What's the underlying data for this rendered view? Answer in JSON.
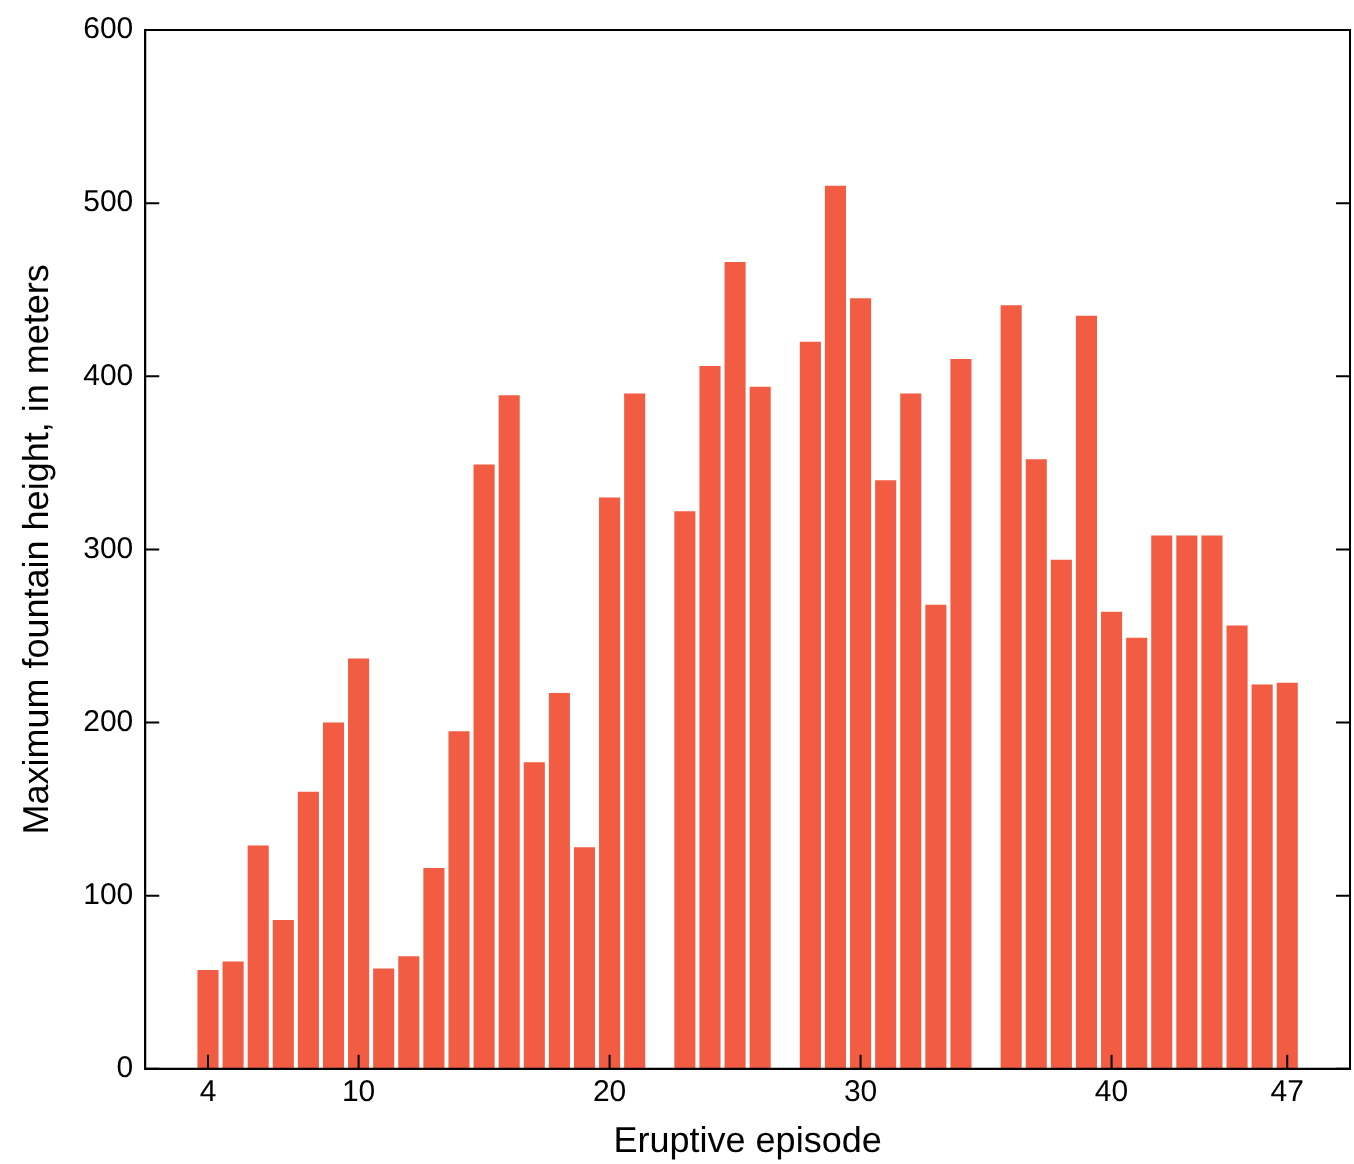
{
  "chart_data": {
    "type": "bar",
    "xlabel": "Eruptive episode",
    "ylabel": "Maximum fountain height, in meters",
    "x": [
      4,
      5,
      6,
      7,
      8,
      9,
      10,
      11,
      12,
      13,
      14,
      15,
      16,
      17,
      18,
      19,
      20,
      21,
      23,
      24,
      25,
      26,
      28,
      29,
      30,
      31,
      32,
      33,
      34,
      36,
      37,
      38,
      39,
      40,
      41,
      42,
      43,
      44,
      45,
      46,
      47
    ],
    "values": [
      57,
      62,
      129,
      86,
      160,
      200,
      237,
      58,
      65,
      116,
      195,
      349,
      389,
      177,
      217,
      128,
      330,
      390,
      322,
      406,
      466,
      394,
      420,
      510,
      445,
      340,
      390,
      268,
      410,
      441,
      352,
      294,
      435,
      264,
      249,
      308,
      308,
      308,
      256,
      222,
      223
    ],
    "color": "#f15c42",
    "xlim": [
      1.5,
      49.5
    ],
    "xticks": [
      4,
      10,
      20,
      30,
      40,
      47
    ],
    "ylim": [
      0,
      600
    ],
    "yticks": [
      0,
      100,
      200,
      300,
      400,
      500,
      600
    ],
    "grid": false,
    "legend": false
  }
}
